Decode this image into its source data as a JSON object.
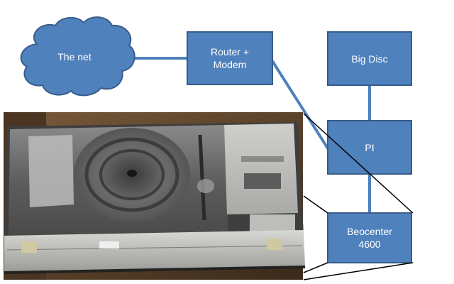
{
  "nodes": {
    "cloud": {
      "label": "The net"
    },
    "router": {
      "label": "Router +\nModem"
    },
    "disc": {
      "label": "Big Disc"
    },
    "pi": {
      "label": "PI"
    },
    "beocenter": {
      "label": "Beocenter\n4600"
    }
  },
  "colors": {
    "box_fill": "#4f81bd",
    "box_stroke": "#385d8a",
    "link": "#4f81bd",
    "callout": "#000000"
  },
  "photo": {
    "subject": "turntable-cassette-stereo"
  }
}
